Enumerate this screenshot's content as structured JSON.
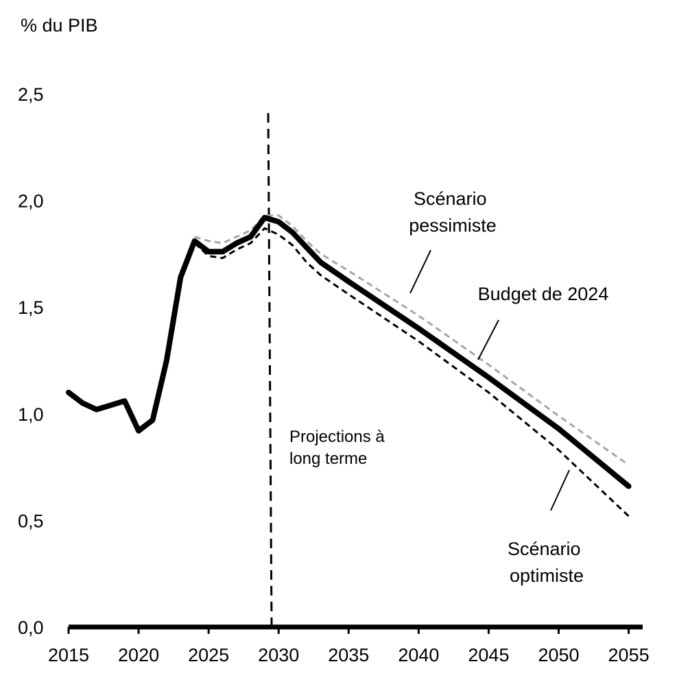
{
  "chart_data": {
    "type": "line",
    "title": "",
    "ylabel": "% du PIB",
    "xlabel": "",
    "xlim": [
      2015,
      2056
    ],
    "ylim": [
      0,
      2.5
    ],
    "x_ticks": [
      "2015",
      "2020",
      "2025",
      "2030",
      "2035",
      "2040",
      "2045",
      "2050",
      "2055"
    ],
    "y_ticks": [
      "0,0",
      "0,5",
      "1,0",
      "1,5",
      "2,0",
      "2,5"
    ],
    "grid": false,
    "projection_line_x": 2029.5,
    "projection_label": [
      "Projections à",
      "long terme"
    ],
    "series": [
      {
        "name": "Budget de 2024",
        "style": "solid-thick",
        "color": "#000000",
        "x": [
          2015,
          2016,
          2017,
          2018,
          2019,
          2020,
          2021,
          2022,
          2023,
          2024,
          2025,
          2026,
          2027,
          2028,
          2029,
          2030,
          2031,
          2032,
          2033,
          2035,
          2040,
          2045,
          2050,
          2055
        ],
        "y": [
          1.1,
          1.05,
          1.02,
          1.04,
          1.06,
          0.92,
          0.97,
          1.25,
          1.64,
          1.81,
          1.76,
          1.76,
          1.8,
          1.83,
          1.92,
          1.9,
          1.85,
          1.78,
          1.71,
          1.62,
          1.4,
          1.17,
          0.93,
          0.66
        ]
      },
      {
        "name": "Scénario pessimiste",
        "style": "dashed",
        "color": "#a6a6a6",
        "x": [
          2024,
          2025,
          2026,
          2027,
          2028,
          2029,
          2030,
          2031,
          2032,
          2033,
          2035,
          2040,
          2045,
          2050,
          2055
        ],
        "y": [
          1.83,
          1.81,
          1.8,
          1.83,
          1.86,
          1.93,
          1.93,
          1.88,
          1.81,
          1.75,
          1.67,
          1.46,
          1.23,
          0.99,
          0.76
        ]
      },
      {
        "name": "Scénario optimiste",
        "style": "dashed",
        "color": "#000000",
        "x": [
          2024,
          2025,
          2026,
          2027,
          2028,
          2029,
          2030,
          2031,
          2032,
          2033,
          2035,
          2040,
          2045,
          2050,
          2055
        ],
        "y": [
          1.8,
          1.74,
          1.73,
          1.77,
          1.8,
          1.87,
          1.84,
          1.79,
          1.71,
          1.65,
          1.56,
          1.34,
          1.1,
          0.83,
          0.52
        ]
      }
    ],
    "annotations": [
      {
        "lines": [
          "Scénario",
          "pessimiste"
        ],
        "series": "Scénario pessimiste"
      },
      {
        "lines": [
          "Budget de 2024"
        ],
        "series": "Budget de 2024"
      },
      {
        "lines": [
          "Scénario",
          "optimiste"
        ],
        "series": "Scénario optimiste"
      }
    ]
  }
}
